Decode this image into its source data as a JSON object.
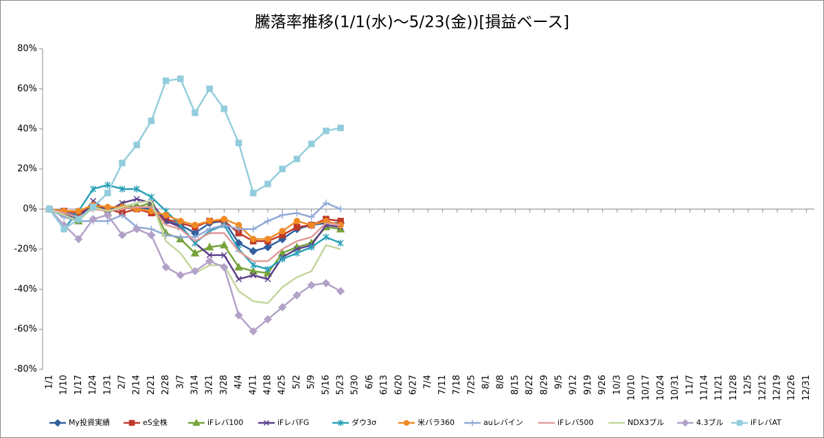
{
  "chart_data": {
    "type": "line",
    "title": "騰落率推移(1/1(水)～5/23(金))[損益ベース]",
    "categories": [
      "1/1",
      "1/10",
      "1/17",
      "1/24",
      "1/31",
      "2/7",
      "2/14",
      "2/21",
      "2/28",
      "3/7",
      "3/14",
      "3/21",
      "3/28",
      "4/4",
      "4/11",
      "4/18",
      "4/25",
      "5/2",
      "5/9",
      "5/16",
      "5/23",
      "5/30",
      "6/6",
      "6/13",
      "6/20",
      "6/27",
      "7/4",
      "7/11",
      "7/18",
      "7/25",
      "8/1",
      "8/8",
      "8/15",
      "8/22",
      "8/29",
      "9/5",
      "9/12",
      "9/19",
      "9/26",
      "10/3",
      "10/10",
      "10/17",
      "10/24",
      "10/31",
      "11/7",
      "11/14",
      "11/21",
      "11/28",
      "12/5",
      "12/12",
      "12/19",
      "12/26",
      "12/31"
    ],
    "ylim": [
      -80,
      80
    ],
    "yticks": [
      {
        "value": -80,
        "label": "-80%"
      },
      {
        "value": -60,
        "label": "-60%"
      },
      {
        "value": -40,
        "label": "-40%"
      },
      {
        "value": -20,
        "label": "-20%"
      },
      {
        "value": 0,
        "label": "0%"
      },
      {
        "value": 20,
        "label": "20%"
      },
      {
        "value": 40,
        "label": "40%"
      },
      {
        "value": 60,
        "label": "60%"
      },
      {
        "value": 80,
        "label": "80%"
      }
    ],
    "grid": false,
    "legend": "bottom",
    "series": [
      {
        "name": "My投資実績",
        "color": "#2e5f9e",
        "marker": "diamond",
        "values": [
          0,
          -2,
          -3,
          2,
          -1,
          0,
          1,
          0,
          -6,
          -8,
          -12,
          -7,
          -6,
          -17,
          -21,
          -19,
          -15,
          -10,
          -8,
          -7,
          -7,
          null,
          null,
          null,
          null,
          null,
          null,
          null,
          null,
          null,
          null,
          null,
          null,
          null,
          null,
          null,
          null,
          null,
          null,
          null,
          null,
          null,
          null,
          null,
          null,
          null,
          null,
          null,
          null,
          null,
          null,
          null,
          null
        ]
      },
      {
        "name": "eS全株",
        "color": "#c0392b",
        "marker": "square",
        "values": [
          0,
          -1,
          -2,
          1,
          0,
          -2,
          0,
          -2,
          -5,
          -7,
          -9,
          -6,
          -6,
          -12,
          -16,
          -16,
          -13,
          -9,
          -8,
          -5,
          -6,
          null,
          null,
          null,
          null,
          null,
          null,
          null,
          null,
          null,
          null,
          null,
          null,
          null,
          null,
          null,
          null,
          null,
          null,
          null,
          null,
          null,
          null,
          null,
          null,
          null,
          null,
          null,
          null,
          null,
          null,
          null,
          null
        ]
      },
      {
        "name": "iFレバ100",
        "color": "#77a33a",
        "marker": "triangle",
        "values": [
          0,
          -2,
          -6,
          2,
          -2,
          2,
          1,
          3,
          -12,
          -15,
          -22,
          -19,
          -18,
          -29,
          -31,
          -32,
          -22,
          -19,
          -17,
          -9,
          -10,
          null,
          null,
          null,
          null,
          null,
          null,
          null,
          null,
          null,
          null,
          null,
          null,
          null,
          null,
          null,
          null,
          null,
          null,
          null,
          null,
          null,
          null,
          null,
          null,
          null,
          null,
          null,
          null,
          null,
          null,
          null,
          null
        ]
      },
      {
        "name": "iFレバFG",
        "color": "#5c3f8a",
        "marker": "x",
        "values": [
          0,
          -3,
          -5,
          4,
          -1,
          3,
          5,
          3,
          -6,
          -9,
          -17,
          -23,
          -23,
          -35,
          -33,
          -35,
          -24,
          -20,
          -18,
          -8,
          -9,
          null,
          null,
          null,
          null,
          null,
          null,
          null,
          null,
          null,
          null,
          null,
          null,
          null,
          null,
          null,
          null,
          null,
          null,
          null,
          null,
          null,
          null,
          null,
          null,
          null,
          null,
          null,
          null,
          null,
          null,
          null,
          null
        ]
      },
      {
        "name": "ダウ3σ",
        "color": "#2aa0b8",
        "marker": "asterisk",
        "values": [
          0,
          -10,
          -1,
          10,
          12,
          10,
          10,
          6,
          -1,
          -8,
          -17,
          -11,
          -8,
          -20,
          -28,
          -30,
          -25,
          -22,
          -19,
          -14,
          -17,
          null,
          null,
          null,
          null,
          null,
          null,
          null,
          null,
          null,
          null,
          null,
          null,
          null,
          null,
          null,
          null,
          null,
          null,
          null,
          null,
          null,
          null,
          null,
          null,
          null,
          null,
          null,
          null,
          null,
          null,
          null,
          null
        ]
      },
      {
        "name": "米バラ360",
        "color": "#f08a24",
        "marker": "circle",
        "values": [
          0,
          -1,
          -1,
          2,
          1,
          1,
          0,
          -1,
          -3,
          -6,
          -8,
          -6,
          -5,
          -8,
          -15,
          -15,
          -11,
          -6,
          -8,
          -6,
          -8,
          null,
          null,
          null,
          null,
          null,
          null,
          null,
          null,
          null,
          null,
          null,
          null,
          null,
          null,
          null,
          null,
          null,
          null,
          null,
          null,
          null,
          null,
          null,
          null,
          null,
          null,
          null,
          null,
          null,
          null,
          null,
          null
        ]
      },
      {
        "name": "auレバイン",
        "color": "#8fa8d6",
        "marker": "plus",
        "values": [
          0,
          -4,
          -6,
          -6,
          -6,
          -3,
          -9,
          -10,
          -13,
          -14,
          -14,
          -10,
          -8,
          -10,
          -10,
          -6,
          -3,
          -2,
          -4,
          3,
          0,
          null,
          null,
          null,
          null,
          null,
          null,
          null,
          null,
          null,
          null,
          null,
          null,
          null,
          null,
          null,
          null,
          null,
          null,
          null,
          null,
          null,
          null,
          null,
          null,
          null,
          null,
          null,
          null,
          null,
          null,
          null,
          null
        ]
      },
      {
        "name": "iFレバ500",
        "color": "#e09a9a",
        "marker": "none",
        "values": [
          0,
          -2,
          -4,
          0,
          -1,
          0,
          1,
          1,
          -8,
          -10,
          -16,
          -12,
          -12,
          -21,
          -26,
          -26,
          -20,
          -16,
          -14,
          -7,
          -8,
          null,
          null,
          null,
          null,
          null,
          null,
          null,
          null,
          null,
          null,
          null,
          null,
          null,
          null,
          null,
          null,
          null,
          null,
          null,
          null,
          null,
          null,
          null,
          null,
          null,
          null,
          null,
          null,
          null,
          null,
          null,
          null
        ]
      },
      {
        "name": "NDX3ブル",
        "color": "#c3d69b",
        "marker": "none",
        "values": [
          0,
          -3,
          -6,
          1,
          -1,
          1,
          3,
          4,
          -16,
          -22,
          -32,
          -28,
          -28,
          -41,
          -46,
          -47,
          -39,
          -34,
          -31,
          -18,
          -20,
          null,
          null,
          null,
          null,
          null,
          null,
          null,
          null,
          null,
          null,
          null,
          null,
          null,
          null,
          null,
          null,
          null,
          null,
          null,
          null,
          null,
          null,
          null,
          null,
          null,
          null,
          null,
          null,
          null,
          null,
          null,
          null
        ]
      },
      {
        "name": "4.3ブル",
        "color": "#b3a2c7",
        "marker": "diamond",
        "values": [
          0,
          -8,
          -15,
          -5,
          -3,
          -13,
          -10,
          -13,
          -29,
          -33,
          -31,
          -26,
          -29,
          -53,
          -61,
          -55,
          -49,
          -43,
          -38,
          -37,
          -41,
          null,
          null,
          null,
          null,
          null,
          null,
          null,
          null,
          null,
          null,
          null,
          null,
          null,
          null,
          null,
          null,
          null,
          null,
          null,
          null,
          null,
          null,
          null,
          null,
          null,
          null,
          null,
          null,
          null,
          null,
          null,
          null
        ]
      },
      {
        "name": "iFレバAT",
        "color": "#93cddd",
        "marker": "square",
        "values": [
          0,
          -10,
          -5,
          1,
          8,
          23,
          32,
          44,
          64,
          65,
          48,
          60,
          50,
          33,
          8,
          12.5,
          20,
          25,
          32.5,
          39,
          40.5,
          null,
          null,
          null,
          null,
          null,
          null,
          null,
          null,
          null,
          null,
          null,
          null,
          null,
          null,
          null,
          null,
          null,
          null,
          null,
          null,
          null,
          null,
          null,
          null,
          null,
          null,
          null,
          null,
          null,
          null,
          null,
          null
        ]
      }
    ]
  }
}
